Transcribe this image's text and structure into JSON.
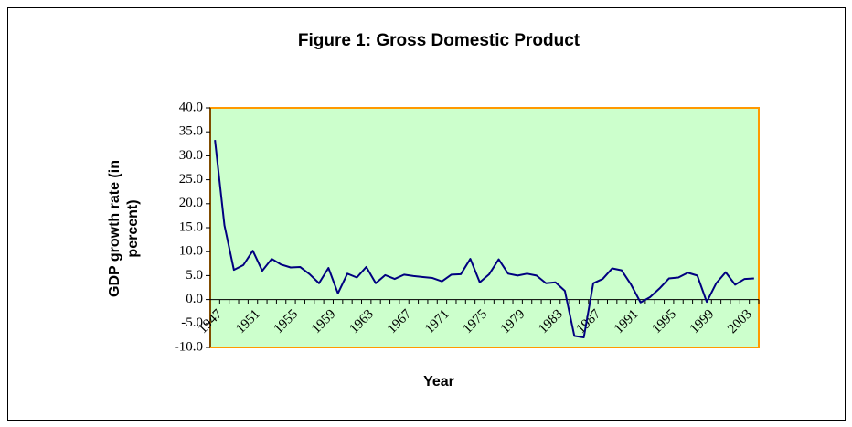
{
  "chart_data": {
    "type": "line",
    "title": "Figure 1: Gross Domestic Product",
    "x_label": "Year",
    "y_label": [
      "GDP growth rate (in",
      "percent)"
    ],
    "categories": [
      "1947",
      null,
      null,
      null,
      "1951",
      null,
      null,
      null,
      "1955",
      null,
      null,
      null,
      "1959",
      null,
      null,
      null,
      "1963",
      null,
      null,
      null,
      "1967",
      null,
      null,
      null,
      "1971",
      null,
      null,
      null,
      "1975",
      null,
      null,
      null,
      "1979",
      null,
      null,
      null,
      "1983",
      null,
      null,
      null,
      "1987",
      null,
      null,
      null,
      "1991",
      null,
      null,
      null,
      "1995",
      null,
      null,
      null,
      "1999",
      null,
      null,
      null,
      "2003",
      null
    ],
    "series": [
      {
        "name": "GDP growth rate",
        "color": "#000080",
        "values": [
          33.3,
          15.5,
          6.2,
          7.2,
          10.2,
          6.0,
          8.5,
          7.3,
          6.7,
          6.8,
          5.3,
          3.4,
          6.6,
          1.3,
          5.4,
          4.6,
          6.8,
          3.4,
          5.1,
          4.3,
          5.2,
          4.9,
          4.7,
          4.5,
          3.8,
          5.2,
          5.3,
          8.5,
          3.6,
          5.3,
          8.4,
          5.4,
          5.0,
          5.4,
          5.0,
          3.4,
          3.6,
          1.8,
          -7.6,
          -7.9,
          3.4,
          4.3,
          6.5,
          6.1,
          3.1,
          -0.6,
          0.5,
          2.3,
          4.4,
          4.6,
          5.6,
          5.0,
          -0.5,
          3.4,
          5.7,
          3.1,
          4.3,
          4.4
        ]
      }
    ],
    "ylim": [
      -10,
      40
    ],
    "yticks": [
      {
        "value": -10,
        "label": "-10.0"
      },
      {
        "value": -5,
        "label": "-5.0"
      },
      {
        "value": 0,
        "label": "0.0"
      },
      {
        "value": 5,
        "label": "5.0"
      },
      {
        "value": 10,
        "label": "10.0"
      },
      {
        "value": 15,
        "label": "15.0"
      },
      {
        "value": 20,
        "label": "20.0"
      },
      {
        "value": 25,
        "label": "25.0"
      },
      {
        "value": 30,
        "label": "30.0"
      },
      {
        "value": 35,
        "label": "35.0"
      },
      {
        "value": 40,
        "label": "40.0"
      }
    ],
    "plot_background": "#ccffcc",
    "plot_border": "#ff9900"
  }
}
